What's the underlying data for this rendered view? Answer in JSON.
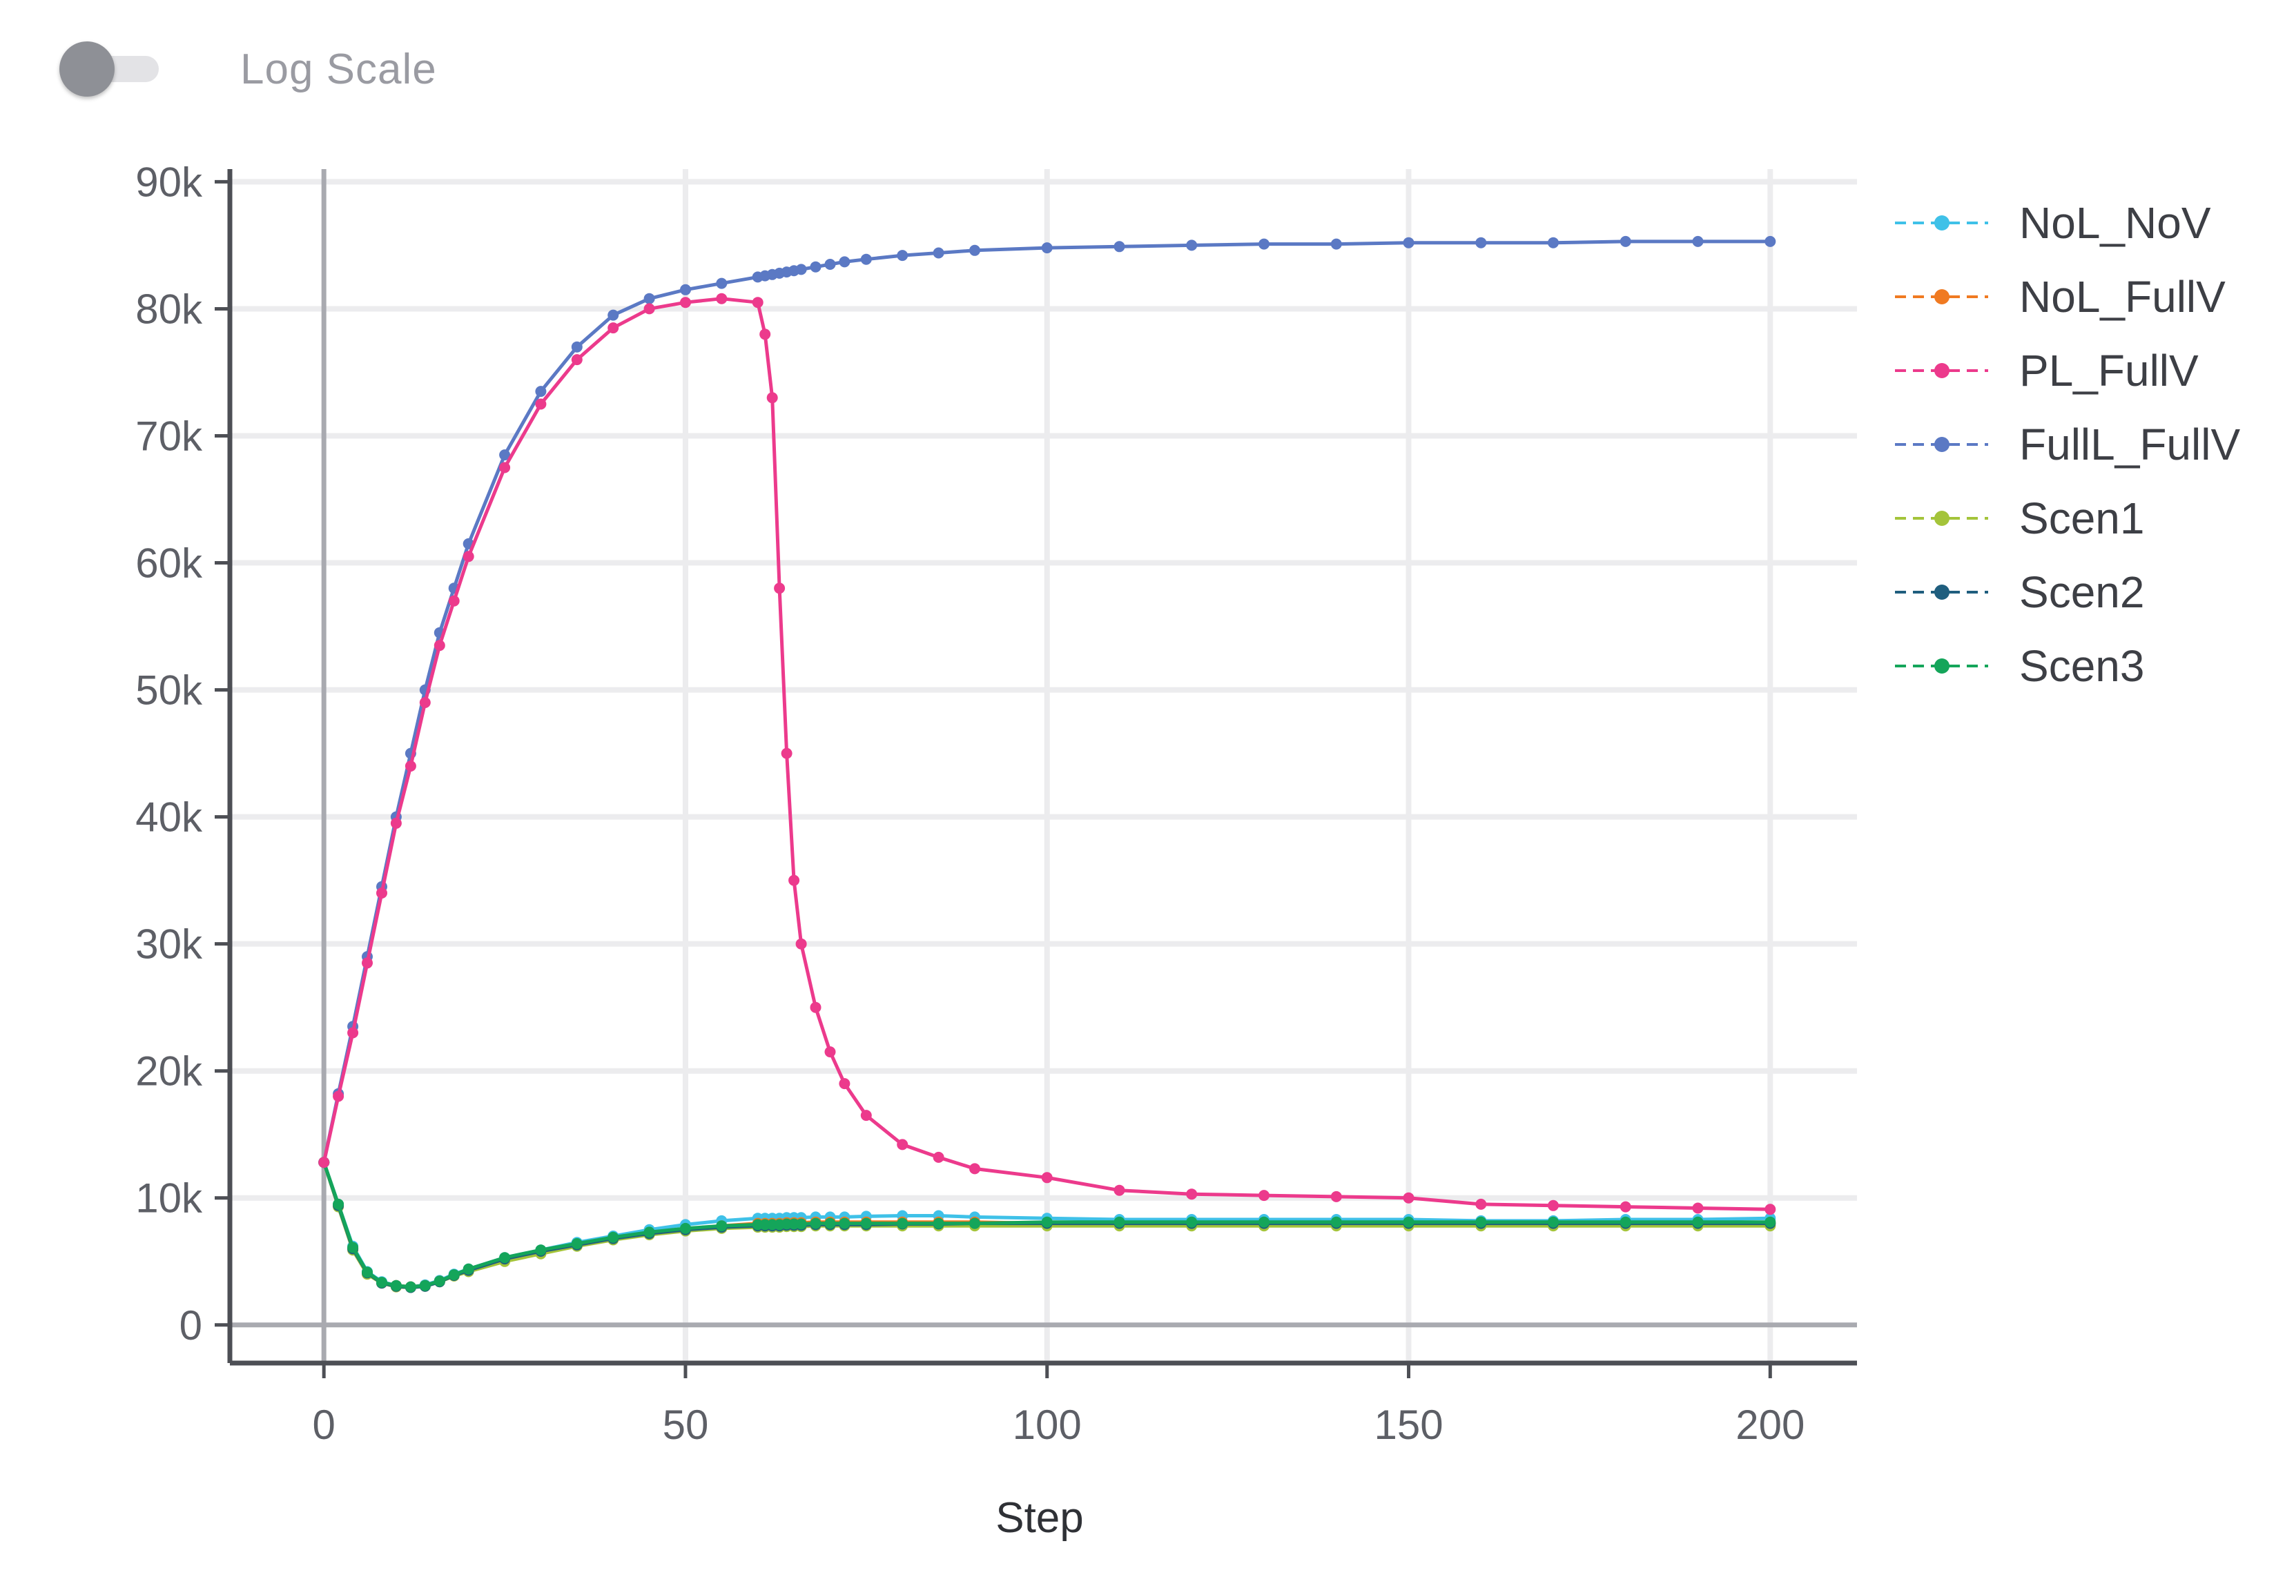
{
  "toolbar": {
    "log_scale_label": "Log Scale",
    "log_scale_enabled": false
  },
  "chart_data": {
    "type": "line",
    "title": "",
    "xlabel": "Step",
    "ylabel": "",
    "xlim": [
      -13,
      212
    ],
    "ylim": [
      -3000,
      91000
    ],
    "x_ticks": [
      0,
      50,
      100,
      150,
      200
    ],
    "x_tick_labels": [
      "0",
      "50",
      "100",
      "150",
      "200"
    ],
    "y_ticks": [
      0,
      10000,
      20000,
      30000,
      40000,
      50000,
      60000,
      70000,
      80000,
      90000
    ],
    "y_tick_labels": [
      "0",
      "10k",
      "20k",
      "30k",
      "40k",
      "50k",
      "60k",
      "70k",
      "80k",
      "90k"
    ],
    "grid": true,
    "log_scale": false,
    "legend_position": "right",
    "x": [
      0,
      2,
      4,
      6,
      8,
      10,
      12,
      14,
      16,
      18,
      20,
      25,
      30,
      35,
      40,
      45,
      50,
      55,
      60,
      61,
      62,
      63,
      64,
      65,
      66,
      68,
      70,
      72,
      75,
      80,
      85,
      90,
      100,
      110,
      120,
      130,
      140,
      150,
      160,
      170,
      180,
      190,
      200
    ],
    "series": [
      {
        "name": "NoL_NoV",
        "color": "#3fc1e8",
        "values": [
          12800,
          9500,
          6200,
          4200,
          3400,
          3100,
          3000,
          3150,
          3500,
          4000,
          4400,
          5300,
          5900,
          6500,
          7000,
          7500,
          7900,
          8200,
          8400,
          8400,
          8400,
          8400,
          8450,
          8450,
          8450,
          8500,
          8500,
          8500,
          8550,
          8600,
          8600,
          8500,
          8400,
          8300,
          8300,
          8300,
          8300,
          8300,
          8200,
          8200,
          8300,
          8300,
          8400
        ]
      },
      {
        "name": "NoL_FullV",
        "color": "#f07a21",
        "values": [
          12800,
          9400,
          6000,
          4100,
          3300,
          3100,
          3000,
          3100,
          3450,
          3900,
          4300,
          5100,
          5700,
          6300,
          6800,
          7200,
          7500,
          7800,
          8000,
          8000,
          8000,
          8000,
          8050,
          8050,
          8050,
          8100,
          8100,
          8100,
          8100,
          8100,
          8100,
          8100,
          8000,
          8000,
          8000,
          8000,
          8000,
          8000,
          8000,
          8000,
          8000,
          8000,
          8000
        ]
      },
      {
        "name": "PL_FullV",
        "color": "#ec3a8c",
        "values": [
          12800,
          18000,
          23000,
          28500,
          34000,
          39500,
          44000,
          49000,
          53500,
          57000,
          60500,
          67500,
          72500,
          76000,
          78500,
          80000,
          80500,
          80800,
          80500,
          78000,
          73000,
          58000,
          45000,
          35000,
          30000,
          25000,
          21500,
          19000,
          16500,
          14200,
          13200,
          12300,
          11600,
          10600,
          10300,
          10200,
          10100,
          10000,
          9500,
          9400,
          9300,
          9200,
          9100
        ]
      },
      {
        "name": "FullL_FullV",
        "color": "#5b79c4",
        "values": [
          12800,
          18200,
          23500,
          29000,
          34500,
          40000,
          45000,
          50000,
          54500,
          58000,
          61500,
          68500,
          73500,
          77000,
          79500,
          80800,
          81500,
          82000,
          82500,
          82600,
          82700,
          82800,
          82900,
          83000,
          83100,
          83300,
          83500,
          83700,
          83900,
          84200,
          84400,
          84600,
          84800,
          84900,
          85000,
          85100,
          85100,
          85200,
          85200,
          85200,
          85300,
          85300,
          85300
        ]
      },
      {
        "name": "Scen1",
        "color": "#a4c43a",
        "values": [
          12800,
          9300,
          5900,
          4000,
          3300,
          3000,
          2950,
          3050,
          3400,
          3850,
          4200,
          5000,
          5600,
          6200,
          6700,
          7100,
          7400,
          7600,
          7700,
          7700,
          7700,
          7700,
          7750,
          7750,
          7750,
          7800,
          7800,
          7800,
          7800,
          7800,
          7800,
          7800,
          7800,
          7800,
          7800,
          7800,
          7800,
          7800,
          7800,
          7800,
          7800,
          7800,
          7800
        ]
      },
      {
        "name": "Scen2",
        "color": "#1f5e7e",
        "values": [
          12800,
          9400,
          6000,
          4100,
          3300,
          3050,
          2950,
          3050,
          3400,
          3900,
          4300,
          5200,
          5800,
          6300,
          6800,
          7200,
          7500,
          7700,
          7800,
          7800,
          7800,
          7800,
          7850,
          7850,
          7850,
          7900,
          7900,
          7900,
          7900,
          7950,
          7950,
          8000,
          8000,
          8000,
          8000,
          8000,
          8000,
          8000,
          8000,
          8000,
          8000,
          8000,
          8000
        ]
      },
      {
        "name": "Scen3",
        "color": "#14a55a",
        "values": [
          12800,
          9500,
          6100,
          4150,
          3350,
          3100,
          3000,
          3100,
          3450,
          3950,
          4400,
          5300,
          5900,
          6400,
          6900,
          7300,
          7600,
          7800,
          7900,
          7900,
          7900,
          7900,
          7950,
          7950,
          7950,
          8000,
          8000,
          8000,
          8000,
          8000,
          8000,
          8000,
          8100,
          8100,
          8100,
          8100,
          8100,
          8100,
          8100,
          8100,
          8100,
          8100,
          8100
        ]
      }
    ]
  }
}
